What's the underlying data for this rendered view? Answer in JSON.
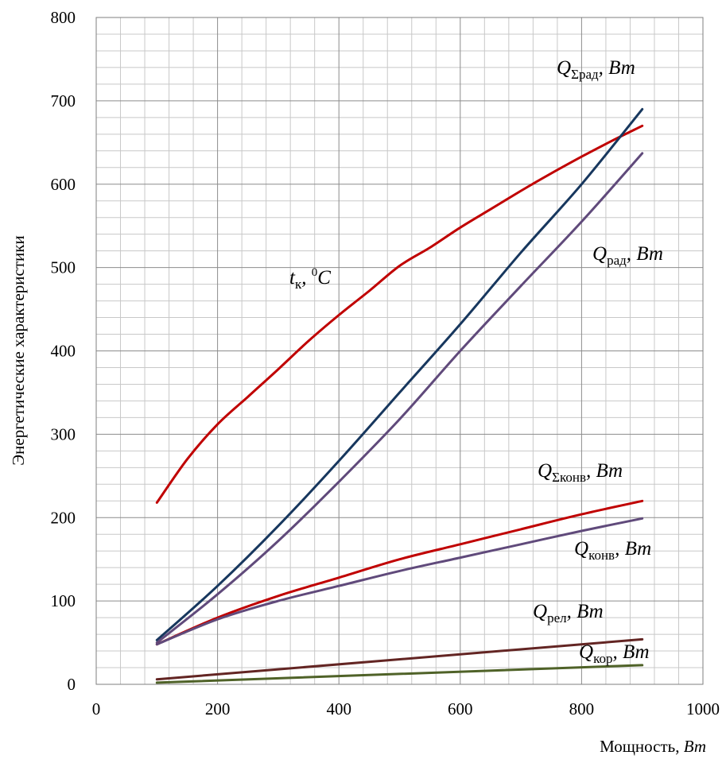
{
  "chart_data": {
    "type": "line",
    "xlabel": {
      "text": "Мощность, ",
      "unit": "Вт"
    },
    "ylabel": "Энергетические характеристики",
    "xlim": [
      0,
      1000
    ],
    "ylim": [
      0,
      800
    ],
    "x_ticks": [
      "0",
      "200",
      "400",
      "600",
      "800",
      "1000"
    ],
    "y_ticks": [
      "0",
      "100",
      "200",
      "300",
      "400",
      "500",
      "600",
      "700",
      "800"
    ],
    "grid": {
      "major_x": 200,
      "major_y": 100,
      "minor_x": 40,
      "minor_y": 20
    },
    "series": [
      {
        "name": "tк, 0C",
        "color": "#c00000",
        "x": [
          100,
          150,
          200,
          250,
          300,
          350,
          400,
          450,
          500,
          550,
          600,
          650,
          700,
          750,
          800,
          850,
          900
        ],
        "y": [
          218,
          270,
          312,
          345,
          378,
          412,
          443,
          472,
          502,
          524,
          548,
          570,
          592,
          613,
          633,
          652,
          670
        ]
      },
      {
        "name": "QΣрад, Вт",
        "color": "#17375e",
        "x": [
          100,
          200,
          300,
          400,
          500,
          600,
          700,
          800,
          900
        ],
        "y": [
          53,
          118,
          190,
          268,
          350,
          432,
          518,
          600,
          690
        ]
      },
      {
        "name": "Qрад, Вт",
        "color": "#604a7b",
        "x": [
          100,
          200,
          300,
          400,
          500,
          600,
          700,
          800,
          900
        ],
        "y": [
          50,
          108,
          172,
          243,
          318,
          400,
          478,
          555,
          637
        ]
      },
      {
        "name": "QΣконв, Вт",
        "color": "#c00000",
        "x": [
          100,
          200,
          300,
          400,
          500,
          600,
          700,
          800,
          900
        ],
        "y": [
          48,
          80,
          106,
          128,
          150,
          168,
          186,
          204,
          220
        ]
      },
      {
        "name": "Qконв, Вт",
        "color": "#604a7b",
        "x": [
          100,
          200,
          300,
          400,
          500,
          600,
          700,
          800,
          900
        ],
        "y": [
          48,
          78,
          100,
          118,
          136,
          152,
          168,
          184,
          199
        ]
      },
      {
        "name": "Qрел, Вт",
        "color": "#632523",
        "x": [
          100,
          900
        ],
        "y": [
          6,
          54
        ]
      },
      {
        "name": "Qкор, Вт",
        "color": "#4f6228",
        "x": [
          100,
          900
        ],
        "y": [
          2,
          23
        ]
      }
    ],
    "annotations": [
      {
        "main": "Q",
        "sub": "Σрад",
        "tail": ", Вт"
      },
      {
        "main": "Q",
        "sub": "рад",
        "tail": ", Вт"
      },
      {
        "main": "t",
        "sub": "к",
        "mid": ", ",
        "sup": "0",
        "tail": "C"
      },
      {
        "main": "Q",
        "sub": "Σконв",
        "tail": ", Вт"
      },
      {
        "main": "Q",
        "sub": "конв",
        "tail": ", Вт"
      },
      {
        "main": "Q",
        "sub": "рел",
        "tail": ", Вт"
      },
      {
        "main": "Q",
        "sub": "кор",
        "tail": ", Вт"
      }
    ]
  }
}
